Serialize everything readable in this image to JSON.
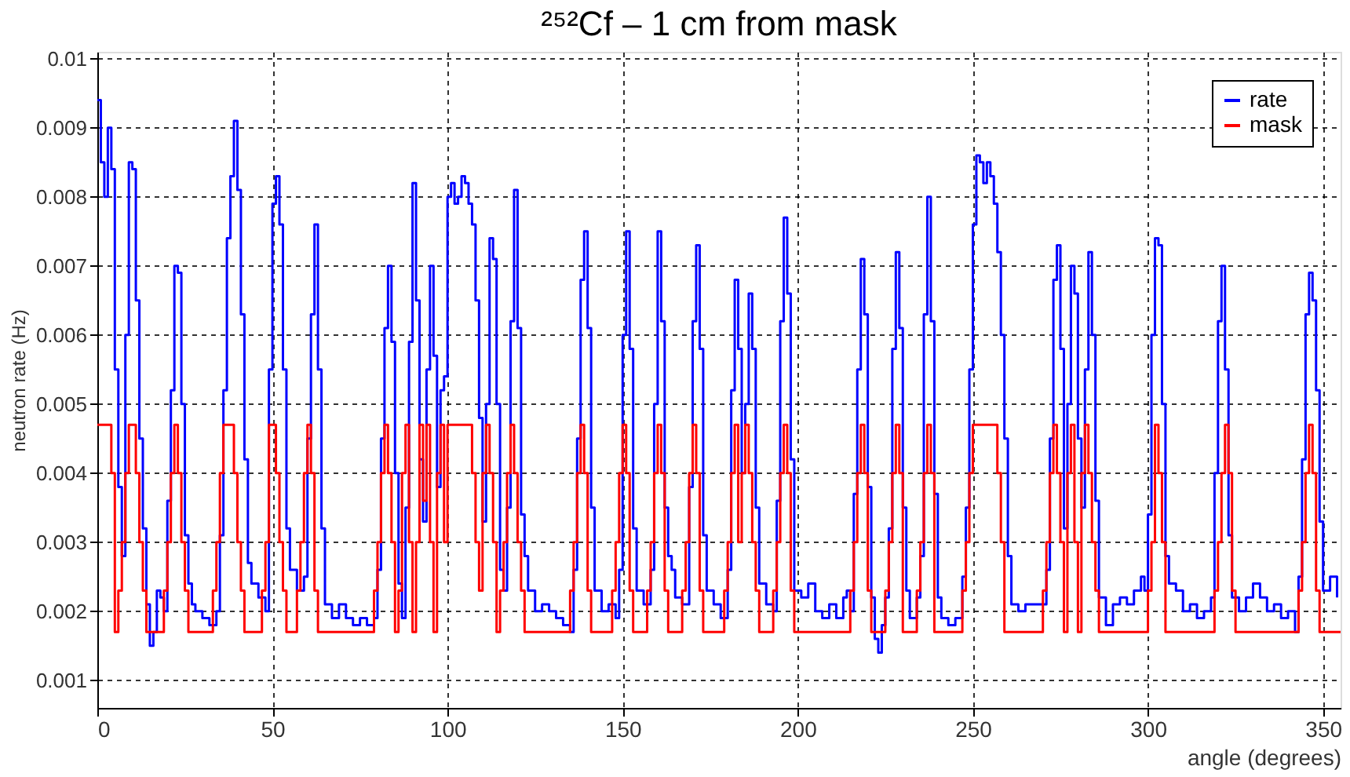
{
  "chart_data": {
    "type": "step",
    "title": "²⁵²Cf – 1 cm from mask",
    "xlabel": "angle (degrees)",
    "ylabel": "neutron rate (Hz)",
    "xlim": [
      0,
      355
    ],
    "xticks": [
      0,
      50,
      100,
      150,
      200,
      250,
      300,
      350
    ],
    "ylim": [
      0.0006,
      0.0101
    ],
    "yticks": [
      0.001,
      0.002,
      0.003,
      0.004,
      0.005,
      0.006,
      0.007,
      0.008,
      0.009,
      0.01
    ],
    "grid": true,
    "legend": "top right",
    "line_style": "solid",
    "marker": "none",
    "series": [
      {
        "name": "rate",
        "color": "#0000ff",
        "x": [
          0,
          1,
          2,
          3,
          4,
          5,
          6,
          7,
          8,
          9,
          10,
          11,
          12,
          13,
          14,
          15,
          16,
          17,
          18,
          19,
          20,
          21,
          22,
          23,
          24,
          25,
          26,
          27,
          28,
          30,
          32,
          34,
          35,
          36,
          37,
          38,
          39,
          40,
          41,
          42,
          43,
          44,
          46,
          48,
          49,
          50,
          51,
          52,
          53,
          54,
          55,
          57,
          59,
          60,
          61,
          62,
          63,
          64,
          65,
          67,
          69,
          71,
          73,
          75,
          77,
          79,
          80,
          81,
          82,
          83,
          84,
          85,
          86,
          87,
          88,
          89,
          90,
          91,
          92,
          93,
          94,
          95,
          96,
          97,
          98,
          99,
          100,
          101,
          102,
          103,
          104,
          105,
          106,
          107,
          108,
          109,
          110,
          111,
          112,
          113,
          114,
          115,
          116,
          117,
          118,
          119,
          120,
          121,
          122,
          123,
          125,
          127,
          129,
          131,
          133,
          135,
          136,
          137,
          138,
          139,
          140,
          141,
          142,
          144,
          146,
          148,
          149,
          150,
          151,
          152,
          153,
          154,
          156,
          158,
          159,
          160,
          161,
          162,
          163,
          164,
          165,
          167,
          169,
          170,
          171,
          172,
          173,
          174,
          176,
          178,
          180,
          181,
          182,
          183,
          184,
          185,
          186,
          187,
          188,
          189,
          191,
          193,
          194,
          195,
          196,
          197,
          198,
          199,
          201,
          203,
          205,
          207,
          209,
          211,
          213,
          214,
          215,
          216,
          217,
          218,
          219,
          220,
          221,
          222,
          223,
          224,
          225,
          226,
          227,
          228,
          229,
          230,
          231,
          232,
          234,
          235,
          236,
          237,
          238,
          239,
          240,
          241,
          243,
          245,
          247,
          248,
          249,
          250,
          251,
          252,
          253,
          254,
          255,
          256,
          257,
          258,
          259,
          260,
          261,
          263,
          265,
          267,
          269,
          271,
          272,
          273,
          274,
          275,
          276,
          277,
          278,
          279,
          280,
          281,
          282,
          283,
          284,
          285,
          286,
          288,
          290,
          292,
          294,
          296,
          298,
          299,
          300,
          301,
          302,
          303,
          304,
          305,
          306,
          308,
          310,
          312,
          314,
          316,
          318,
          319,
          320,
          321,
          322,
          323,
          324,
          326,
          328,
          330,
          332,
          334,
          336,
          338,
          340,
          342,
          343,
          344,
          345,
          346,
          347,
          348,
          349,
          350,
          352,
          354
        ],
        "values": [
          0.0094,
          0.0085,
          0.008,
          0.009,
          0.0084,
          0.0055,
          0.0038,
          0.0028,
          0.006,
          0.0085,
          0.0084,
          0.0065,
          0.0045,
          0.0032,
          0.0021,
          0.0015,
          0.0017,
          0.0023,
          0.0022,
          0.002,
          0.0036,
          0.0052,
          0.007,
          0.0069,
          0.005,
          0.0031,
          0.0024,
          0.0021,
          0.002,
          0.0019,
          0.0018,
          0.002,
          0.0031,
          0.0052,
          0.0074,
          0.0083,
          0.0091,
          0.0081,
          0.0063,
          0.0042,
          0.0027,
          0.0024,
          0.0022,
          0.002,
          0.0055,
          0.0079,
          0.0083,
          0.0076,
          0.0055,
          0.0032,
          0.0026,
          0.0023,
          0.0025,
          0.0045,
          0.0063,
          0.0076,
          0.0055,
          0.0032,
          0.0021,
          0.0019,
          0.0021,
          0.0019,
          0.0018,
          0.0019,
          0.0018,
          0.0019,
          0.0026,
          0.0045,
          0.0061,
          0.007,
          0.0059,
          0.004,
          0.0024,
          0.0019,
          0.0035,
          0.0059,
          0.0082,
          0.0065,
          0.0042,
          0.0033,
          0.0055,
          0.007,
          0.0057,
          0.0038,
          0.0052,
          0.0054,
          0.008,
          0.0082,
          0.0079,
          0.008,
          0.0083,
          0.0082,
          0.0079,
          0.0076,
          0.0065,
          0.0048,
          0.0033,
          0.005,
          0.0074,
          0.0071,
          0.005,
          0.0026,
          0.0023,
          0.0035,
          0.0062,
          0.0081,
          0.0061,
          0.0034,
          0.0028,
          0.0023,
          0.002,
          0.0021,
          0.002,
          0.0019,
          0.0018,
          0.0017,
          0.0026,
          0.0045,
          0.0068,
          0.0075,
          0.0061,
          0.0035,
          0.0023,
          0.002,
          0.0021,
          0.0019,
          0.0026,
          0.006,
          0.0075,
          0.0058,
          0.0032,
          0.0023,
          0.0021,
          0.0026,
          0.005,
          0.0075,
          0.0062,
          0.0035,
          0.0028,
          0.0026,
          0.0022,
          0.0021,
          0.0038,
          0.0062,
          0.0073,
          0.0058,
          0.0031,
          0.0023,
          0.0021,
          0.0019,
          0.0026,
          0.0052,
          0.0068,
          0.0058,
          0.004,
          0.005,
          0.0066,
          0.0058,
          0.0035,
          0.0024,
          0.0021,
          0.002,
          0.0036,
          0.0062,
          0.0077,
          0.0066,
          0.0042,
          0.0023,
          0.0022,
          0.0024,
          0.002,
          0.0019,
          0.0021,
          0.0019,
          0.0022,
          0.0023,
          0.002,
          0.0037,
          0.0055,
          0.0071,
          0.0063,
          0.0038,
          0.0022,
          0.0016,
          0.0014,
          0.0018,
          0.0022,
          0.0032,
          0.0058,
          0.0072,
          0.0061,
          0.0035,
          0.0023,
          0.0019,
          0.0022,
          0.0028,
          0.0063,
          0.008,
          0.0062,
          0.0037,
          0.0022,
          0.0019,
          0.0018,
          0.0019,
          0.0025,
          0.0035,
          0.0055,
          0.0076,
          0.0086,
          0.0085,
          0.0082,
          0.0085,
          0.0083,
          0.0079,
          0.0072,
          0.006,
          0.0045,
          0.0028,
          0.0021,
          0.002,
          0.0021,
          0.0021,
          0.0021,
          0.0026,
          0.0045,
          0.0068,
          0.0073,
          0.0058,
          0.0032,
          0.005,
          0.007,
          0.0066,
          0.0045,
          0.0035,
          0.0055,
          0.0072,
          0.006,
          0.0036,
          0.0022,
          0.0018,
          0.0021,
          0.0022,
          0.0021,
          0.0023,
          0.0025,
          0.0023,
          0.0034,
          0.006,
          0.0074,
          0.0073,
          0.005,
          0.0028,
          0.0024,
          0.0023,
          0.002,
          0.0021,
          0.0019,
          0.002,
          0.0022,
          0.004,
          0.0062,
          0.007,
          0.0055,
          0.0031,
          0.0022,
          0.002,
          0.0022,
          0.0024,
          0.0022,
          0.002,
          0.0021,
          0.0019,
          0.002,
          0.0017,
          0.0025,
          0.0042,
          0.0063,
          0.0069,
          0.0065,
          0.0052,
          0.0033,
          0.0023,
          0.0025,
          0.0022
        ]
      },
      {
        "name": "mask",
        "color": "#ff0000",
        "x": [
          0,
          4,
          5,
          6,
          7,
          8,
          9,
          11,
          12,
          13,
          14,
          19,
          20,
          21,
          22,
          23,
          24,
          25,
          26,
          33,
          34,
          35,
          36,
          39,
          40,
          41,
          42,
          47,
          48,
          49,
          51,
          52,
          53,
          54,
          57,
          58,
          59,
          60,
          61,
          62,
          63,
          79,
          80,
          81,
          82,
          83,
          84,
          85,
          86,
          87,
          88,
          89,
          90,
          91,
          92,
          93,
          94,
          95,
          96,
          97,
          98,
          99,
          100,
          107,
          108,
          109,
          110,
          111,
          112,
          113,
          114,
          115,
          116,
          117,
          118,
          119,
          120,
          121,
          122,
          135,
          136,
          137,
          138,
          139,
          140,
          141,
          147,
          148,
          149,
          150,
          151,
          152,
          153,
          157,
          158,
          159,
          160,
          161,
          162,
          163,
          167,
          168,
          169,
          170,
          171,
          172,
          173,
          179,
          180,
          181,
          182,
          183,
          184,
          185,
          186,
          187,
          188,
          189,
          193,
          194,
          195,
          196,
          197,
          198,
          199,
          215,
          216,
          217,
          218,
          219,
          220,
          221,
          225,
          226,
          227,
          228,
          229,
          230,
          234,
          235,
          236,
          237,
          238,
          239,
          247,
          248,
          249,
          250,
          257,
          258,
          259,
          270,
          271,
          272,
          273,
          274,
          275,
          276,
          277,
          278,
          279,
          280,
          281,
          282,
          283,
          284,
          285,
          286,
          300,
          301,
          302,
          303,
          304,
          305,
          319,
          320,
          321,
          322,
          323,
          324,
          325,
          343,
          344,
          345,
          346,
          347,
          348,
          349,
          355
        ],
        "values": [
          0.0047,
          0.004,
          0.0017,
          0.0023,
          0.003,
          0.004,
          0.0047,
          0.004,
          0.003,
          0.0023,
          0.0017,
          0.0023,
          0.003,
          0.004,
          0.0047,
          0.004,
          0.003,
          0.0023,
          0.0017,
          0.0023,
          0.003,
          0.004,
          0.0047,
          0.004,
          0.003,
          0.0023,
          0.0017,
          0.0023,
          0.003,
          0.0047,
          0.004,
          0.003,
          0.0023,
          0.0017,
          0.0023,
          0.003,
          0.004,
          0.0047,
          0.004,
          0.0023,
          0.0017,
          0.0023,
          0.003,
          0.004,
          0.0047,
          0.004,
          0.003,
          0.0017,
          0.0023,
          0.004,
          0.0047,
          0.003,
          0.0017,
          0.003,
          0.0047,
          0.0036,
          0.0047,
          0.003,
          0.0017,
          0.004,
          0.0047,
          0.003,
          0.0047,
          0.004,
          0.003,
          0.0023,
          0.004,
          0.0047,
          0.004,
          0.003,
          0.0017,
          0.0023,
          0.003,
          0.004,
          0.0047,
          0.004,
          0.003,
          0.0023,
          0.0017,
          0.0023,
          0.003,
          0.004,
          0.0047,
          0.004,
          0.0023,
          0.0017,
          0.0023,
          0.003,
          0.004,
          0.0047,
          0.004,
          0.0023,
          0.0017,
          0.0023,
          0.003,
          0.004,
          0.0047,
          0.004,
          0.0023,
          0.0017,
          0.0023,
          0.003,
          0.004,
          0.0047,
          0.004,
          0.0023,
          0.0017,
          0.0023,
          0.003,
          0.004,
          0.0047,
          0.003,
          0.004,
          0.0047,
          0.004,
          0.003,
          0.0023,
          0.0017,
          0.0023,
          0.003,
          0.004,
          0.0047,
          0.004,
          0.0023,
          0.0017,
          0.0023,
          0.003,
          0.004,
          0.0047,
          0.004,
          0.0023,
          0.0017,
          0.0023,
          0.003,
          0.004,
          0.0047,
          0.004,
          0.0017,
          0.0023,
          0.003,
          0.004,
          0.0047,
          0.004,
          0.0017,
          0.0023,
          0.003,
          0.004,
          0.0047,
          0.004,
          0.003,
          0.0017,
          0.0023,
          0.003,
          0.004,
          0.0047,
          0.004,
          0.003,
          0.0017,
          0.004,
          0.0047,
          0.003,
          0.0017,
          0.004,
          0.0047,
          0.004,
          0.003,
          0.0023,
          0.0017,
          0.0023,
          0.003,
          0.0047,
          0.004,
          0.003,
          0.0017,
          0.0023,
          0.003,
          0.004,
          0.0047,
          0.004,
          0.0023,
          0.0017,
          0.0023,
          0.003,
          0.004,
          0.0047,
          0.004,
          0.0023,
          0.0017,
          0.0017
        ]
      }
    ]
  }
}
